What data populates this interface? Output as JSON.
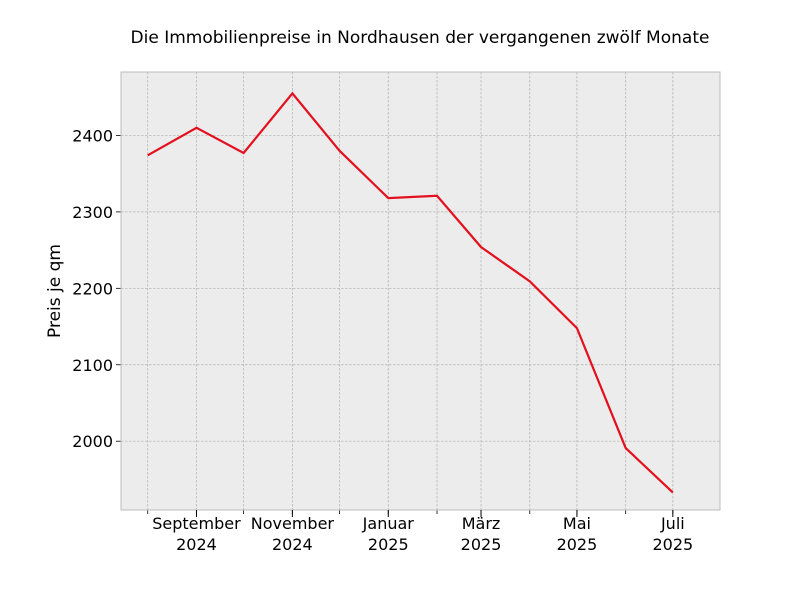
{
  "chart_data": {
    "type": "line",
    "title": "Die Immobilienpreise in Nordhausen der vergangenen zwölf Monate",
    "xlabel": "",
    "ylabel": "Preis je qm",
    "x": [
      "2024-08",
      "2024-09",
      "2024-10",
      "2024-11",
      "2024-12",
      "2025-01",
      "2025-02",
      "2025-03",
      "2025-04",
      "2025-05",
      "2025-06",
      "2025-07"
    ],
    "series": [
      {
        "values": [
          2374,
          2410,
          2377,
          2455,
          2380,
          2318,
          2321,
          2254,
          2209,
          2148,
          1991,
          1933
        ]
      }
    ],
    "x_tick_labels": [
      {
        "x": "2024-09",
        "line1": "September",
        "line2": "2024"
      },
      {
        "x": "2024-11",
        "line1": "November",
        "line2": "2024"
      },
      {
        "x": "2025-01",
        "line1": "Januar",
        "line2": "2025"
      },
      {
        "x": "2025-03",
        "line1": "März",
        "line2": "2025"
      },
      {
        "x": "2025-05",
        "line1": "Mai",
        "line2": "2025"
      },
      {
        "x": "2025-07",
        "line1": "Juli",
        "line2": "2025"
      }
    ],
    "y_ticks": [
      2000,
      2100,
      2200,
      2300,
      2400
    ],
    "ylim": [
      1910,
      2483
    ],
    "xlim": [
      "2024-07-15",
      "2025-07-31"
    ],
    "grid": true,
    "legend": "none",
    "colors": {
      "line": "#e3101e",
      "plot_background": "#ececec",
      "grid": "#b0b0b0",
      "frame": "#bcbcbc"
    }
  }
}
